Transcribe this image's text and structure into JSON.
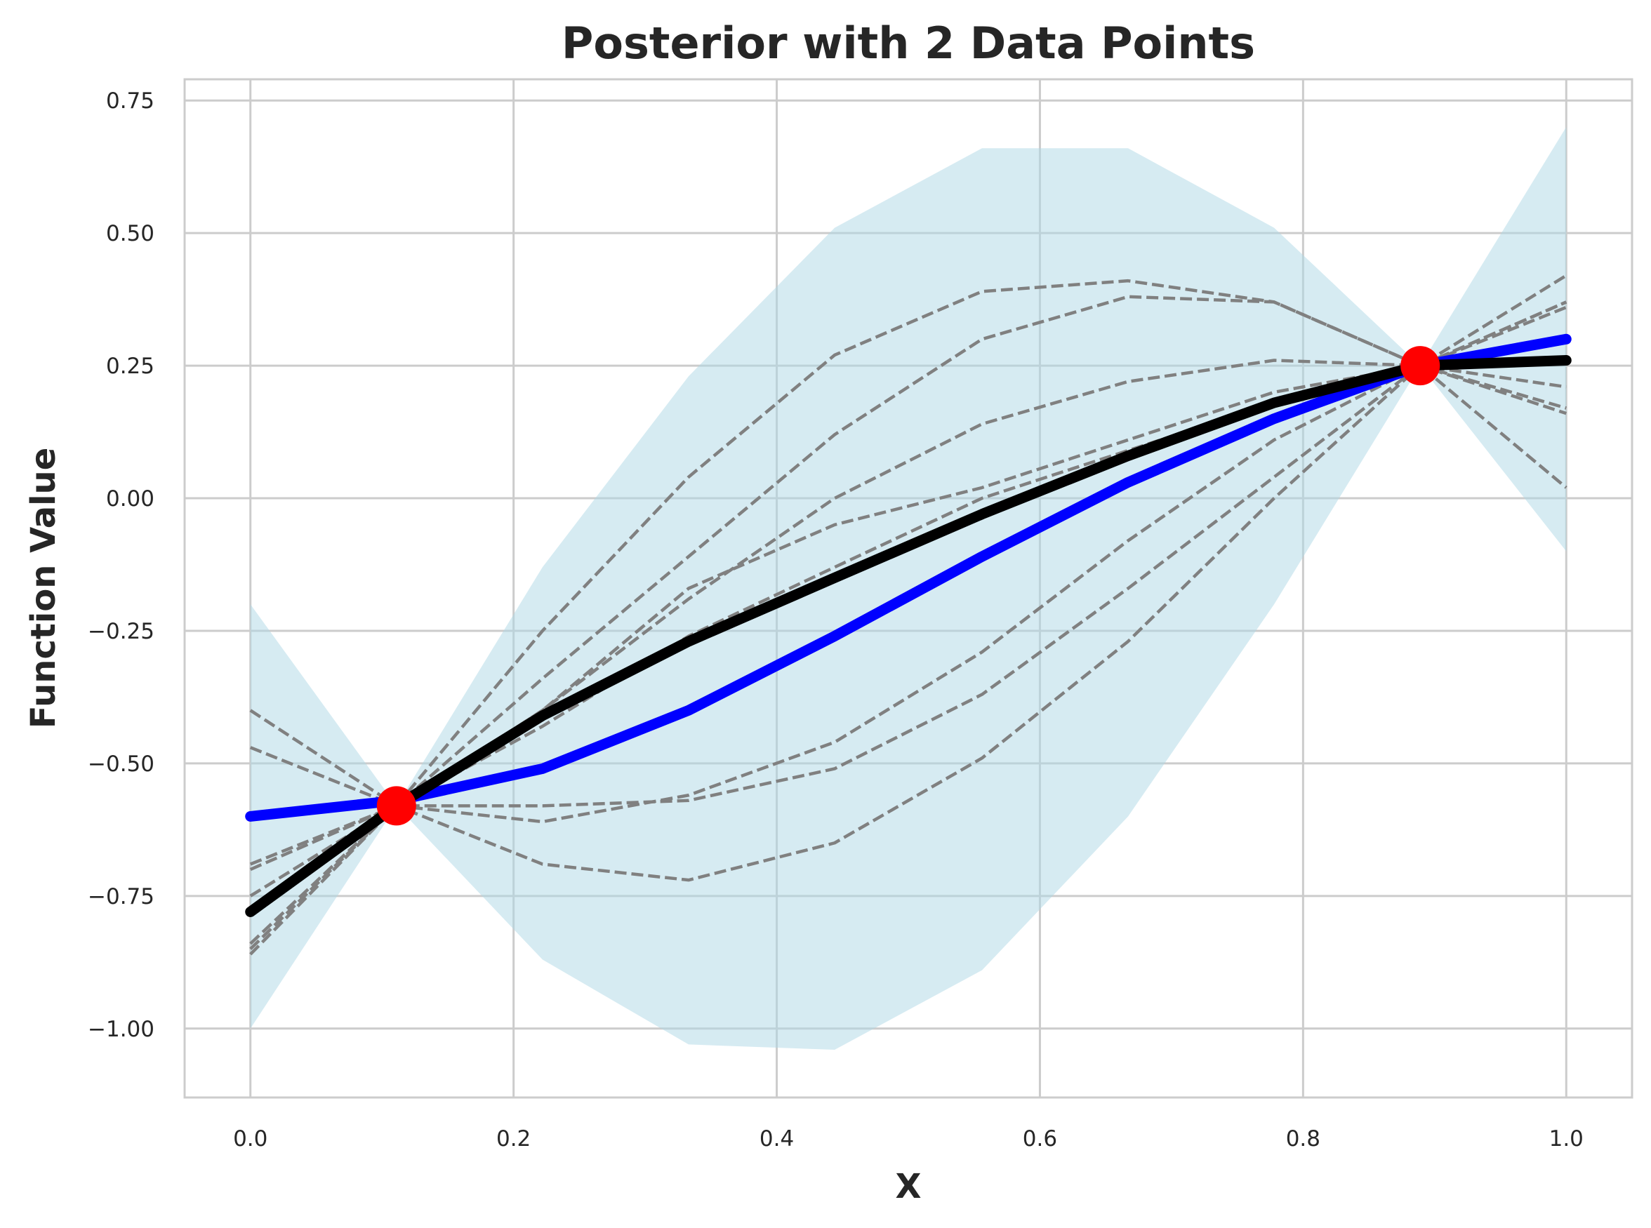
{
  "chart_data": {
    "type": "line",
    "title": "Posterior with 2 Data Points",
    "xlabel": "X",
    "ylabel": "Function Value",
    "xlim": [
      -0.05,
      1.05
    ],
    "ylim": [
      -1.13,
      0.79
    ],
    "x_ticks": [
      0.0,
      0.2,
      0.4,
      0.6,
      0.8,
      1.0
    ],
    "x_tick_labels": [
      "0.0",
      "0.2",
      "0.4",
      "0.6",
      "0.8",
      "1.0"
    ],
    "y_ticks": [
      0.75,
      0.5,
      0.25,
      0.0,
      -0.25,
      -0.5,
      -0.75,
      -1.0
    ],
    "y_tick_labels": [
      "0.75",
      "0.50",
      "0.25",
      "0.00",
      "−0.25",
      "−0.50",
      "−0.75",
      "−1.00"
    ],
    "grid": true,
    "x": [
      0.0,
      0.111,
      0.222,
      0.333,
      0.444,
      0.556,
      0.667,
      0.778,
      0.889,
      1.0
    ],
    "band": {
      "color": "#add8e6",
      "opacity": 0.5,
      "lower": [
        -1.0,
        -0.58,
        -0.87,
        -1.03,
        -1.04,
        -0.89,
        -0.6,
        -0.2,
        0.25,
        -0.1
      ],
      "upper": [
        -0.2,
        -0.58,
        -0.13,
        0.23,
        0.51,
        0.66,
        0.66,
        0.51,
        0.25,
        0.7
      ]
    },
    "samples": {
      "color": "#808080",
      "dash": true,
      "lines": [
        [
          -0.84,
          -0.58,
          -0.25,
          0.04,
          0.27,
          0.39,
          0.41,
          0.37,
          0.25,
          0.02
        ],
        [
          -0.86,
          -0.58,
          -0.34,
          -0.11,
          0.12,
          0.3,
          0.38,
          0.37,
          0.25,
          0.17
        ],
        [
          -0.75,
          -0.58,
          -0.4,
          -0.19,
          0.0,
          0.14,
          0.22,
          0.26,
          0.25,
          0.21
        ],
        [
          -0.7,
          -0.58,
          -0.4,
          -0.17,
          -0.05,
          0.02,
          0.11,
          0.2,
          0.25,
          0.42
        ],
        [
          -0.69,
          -0.58,
          -0.43,
          -0.26,
          -0.13,
          0.0,
          0.09,
          0.18,
          0.25,
          0.37
        ],
        [
          -0.47,
          -0.58,
          -0.58,
          -0.57,
          -0.51,
          -0.37,
          -0.17,
          0.04,
          0.25,
          0.37
        ],
        [
          -0.4,
          -0.58,
          -0.69,
          -0.72,
          -0.65,
          -0.49,
          -0.27,
          0.0,
          0.25,
          0.36
        ],
        [
          -0.85,
          -0.58,
          -0.61,
          -0.56,
          -0.46,
          -0.29,
          -0.08,
          0.11,
          0.25,
          0.16
        ]
      ]
    },
    "series": [
      {
        "color": "#0000ff",
        "values": [
          -0.6,
          -0.57,
          -0.51,
          -0.4,
          -0.26,
          -0.11,
          0.03,
          0.15,
          0.25,
          0.3
        ]
      },
      {
        "color": "#000000",
        "values": [
          -0.78,
          -0.58,
          -0.41,
          -0.27,
          -0.15,
          -0.03,
          0.08,
          0.18,
          0.25,
          0.26
        ]
      }
    ],
    "points": {
      "color": "#ff0000",
      "x": [
        0.111,
        0.889
      ],
      "y": [
        -0.58,
        0.25
      ]
    }
  }
}
